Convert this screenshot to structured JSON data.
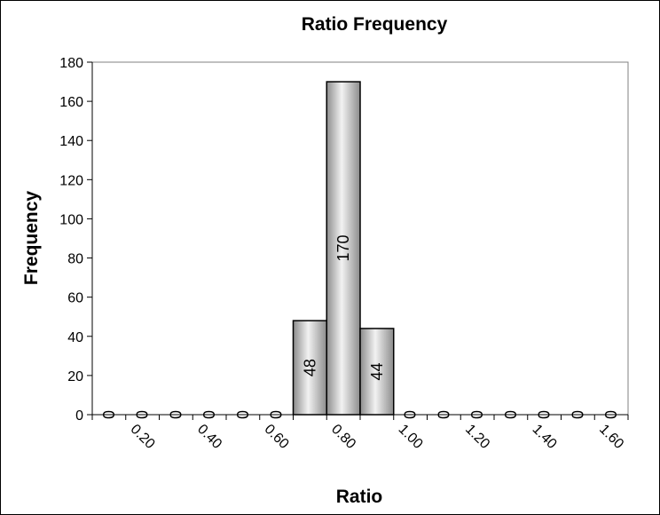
{
  "chart_data": {
    "type": "bar",
    "title": "Ratio Frequency",
    "xlabel": "Ratio",
    "ylabel": "Frequency",
    "ylim": [
      0,
      180
    ],
    "y_ticks": [
      "0",
      "20",
      "40",
      "60",
      "80",
      "100",
      "120",
      "140",
      "160",
      "180"
    ],
    "x_tick_labels": [
      "0.20",
      "0.40",
      "0.60",
      "0.80",
      "1.00",
      "1.20",
      "1.40",
      "1.60"
    ],
    "categories": [
      "0.15",
      "0.25",
      "0.35",
      "0.45",
      "0.55",
      "0.65",
      "0.75",
      "0.85",
      "0.95",
      "1.05",
      "1.15",
      "1.25",
      "1.35",
      "1.45",
      "1.55",
      "1.65"
    ],
    "values": [
      0,
      0,
      0,
      0,
      0,
      0,
      48,
      170,
      44,
      0,
      0,
      0,
      0,
      0,
      0,
      0
    ],
    "data_labels": [
      "0",
      "0",
      "0",
      "0",
      "0",
      "0",
      "48",
      "170",
      "44",
      "0",
      "0",
      "0",
      "0",
      "0",
      "0",
      "0"
    ],
    "grid": false,
    "legend": "none",
    "colors": {
      "bar_light": "#f2f2f2",
      "bar_dark": "#8c8c8c",
      "axis": "#000000",
      "plot_border": "#808080"
    }
  }
}
